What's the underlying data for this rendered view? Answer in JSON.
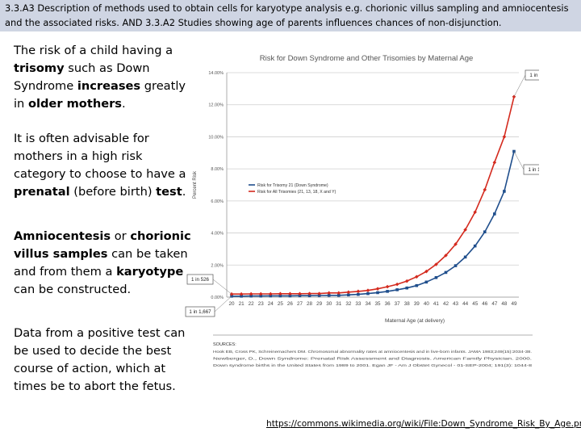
{
  "header": {
    "line1": "3.3.A3 Description of methods used to obtain cells for karyotype analysis e.g. chorionic villus sampling and amniocentesis",
    "line2": "and the associated risks. AND 3.3.A2 Studies showing age of parents influences chances of non-disjunction."
  },
  "paragraphs": {
    "p1": [
      {
        "t": "The risk of a child having a ",
        "b": false
      },
      {
        "t": "trisomy",
        "b": true
      },
      {
        "t": " such as Down Syndrome ",
        "b": false
      },
      {
        "t": "increases",
        "b": true
      },
      {
        "t": " greatly in ",
        "b": false
      },
      {
        "t": "older mothers",
        "b": true
      },
      {
        "t": ".",
        "b": false
      }
    ],
    "p2": [
      {
        "t": "It is often advisable for mothers in a high risk category to choose to have a ",
        "b": false
      },
      {
        "t": "prenatal",
        "b": true
      },
      {
        "t": " (before birth) ",
        "b": false
      },
      {
        "t": "test",
        "b": true
      },
      {
        "t": ".",
        "b": false
      }
    ],
    "p3": [
      {
        "t": "Amniocentesis",
        "b": true
      },
      {
        "t": " or ",
        "b": false
      },
      {
        "t": "chorionic villus samples",
        "b": true
      },
      {
        "t": " can be taken and from them a ",
        "b": false
      },
      {
        "t": "karyotype",
        "b": true
      },
      {
        "t": " can be constructed.",
        "b": false
      }
    ],
    "p4": [
      {
        "t": "Data from a positive test can be used to decide the best course of action, which at times be to abort the fetus.",
        "b": false
      }
    ]
  },
  "chart_data": {
    "type": "line",
    "title": "Risk for Down Syndrome and Other Trisomies by Maternal Age",
    "xlabel": "Maternal Age (at delivery)",
    "ylabel": "Percent Risk",
    "x": [
      20,
      21,
      22,
      23,
      24,
      25,
      26,
      27,
      28,
      29,
      30,
      31,
      32,
      33,
      34,
      35,
      36,
      37,
      38,
      39,
      40,
      41,
      42,
      43,
      44,
      45,
      46,
      47,
      48,
      49
    ],
    "ylim": [
      0,
      14
    ],
    "yticks": [
      "0.00%",
      "2.00%",
      "4.00%",
      "6.00%",
      "8.00%",
      "10.00%",
      "12.00%",
      "14.00%"
    ],
    "grid": true,
    "legend_position": "upper-left",
    "series": [
      {
        "name": "Risk for Trisomy 21 (Down Syndrome)",
        "color": "#1f4e8c",
        "values": [
          0.06,
          0.06,
          0.07,
          0.07,
          0.08,
          0.08,
          0.08,
          0.09,
          0.09,
          0.1,
          0.11,
          0.11,
          0.14,
          0.17,
          0.22,
          0.28,
          0.36,
          0.46,
          0.57,
          0.72,
          0.94,
          1.22,
          1.54,
          1.96,
          2.5,
          3.19,
          4.07,
          5.19,
          6.6,
          9.09
        ]
      },
      {
        "name": "Risk for All Trisomies (21, 13, 18, X and Y)",
        "color": "#d42a1e",
        "values": [
          0.19,
          0.19,
          0.2,
          0.2,
          0.2,
          0.21,
          0.21,
          0.21,
          0.22,
          0.22,
          0.26,
          0.26,
          0.31,
          0.36,
          0.42,
          0.52,
          0.65,
          0.8,
          1.0,
          1.27,
          1.6,
          2.04,
          2.6,
          3.3,
          4.2,
          5.3,
          6.7,
          8.4,
          10.0,
          12.5
        ]
      }
    ],
    "annotations": [
      "1 in 8",
      "1 in 11",
      "1 in 526",
      "1 in 1,667"
    ],
    "sources": {
      "heading": "SOURCES:",
      "lines": [
        "Hook EB, Cross PK, Schreinemachers DM. Chromosomal abnormality rates at amniocentesis and in live-born infants. JAMA 1983;249(15):2034-38.",
        "Newberger, D., Down Syndrome: Prenatal Risk Assessment and Diagnosis. American Family Physician. 2000.",
        "Down syndrome births in the United States from 1989 to 2001. Egan JF - Am J Obstet Gynecol - 01-SEP-2004; 191(3): 1044-8"
      ]
    }
  },
  "footer": {
    "link": "https://commons.wikimedia.org/wiki/File:Down_Syndrome_Risk_By_Age.png"
  },
  "colors": {
    "header_bg": "#cfd5e3",
    "trisomy21": "#1f4e8c",
    "all_trisomies": "#d42a1e"
  }
}
